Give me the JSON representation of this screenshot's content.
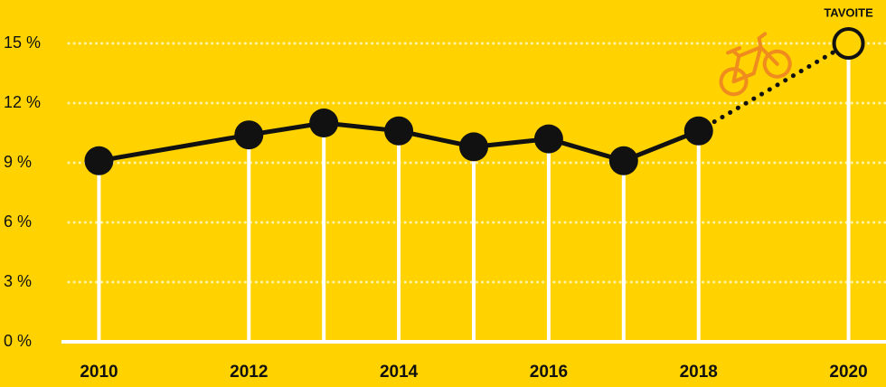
{
  "chart_data": {
    "type": "line",
    "x": [
      2010,
      2012,
      2013,
      2014,
      2015,
      2016,
      2017,
      2018
    ],
    "series": [
      {
        "color": "#111111",
        "values": [
          9.1,
          10.4,
          11.0,
          10.6,
          9.8,
          10.2,
          9.1,
          10.6
        ]
      }
    ],
    "target": {
      "x": 2020,
      "value": 15,
      "label": "TAVOITE"
    },
    "xlim": [
      2009.5,
      2020.5
    ],
    "xticks": [
      2010,
      2012,
      2014,
      2016,
      2018,
      2020
    ],
    "ylim": [
      0,
      15
    ],
    "yticks": [
      {
        "value": 0,
        "label": "0 %"
      },
      {
        "value": 3,
        "label": "3 %"
      },
      {
        "value": 6,
        "label": "6 %"
      },
      {
        "value": 9,
        "label": "9 %"
      },
      {
        "value": 12,
        "label": "12 %"
      },
      {
        "value": 15,
        "label": "15 %"
      }
    ],
    "grid": true
  }
}
